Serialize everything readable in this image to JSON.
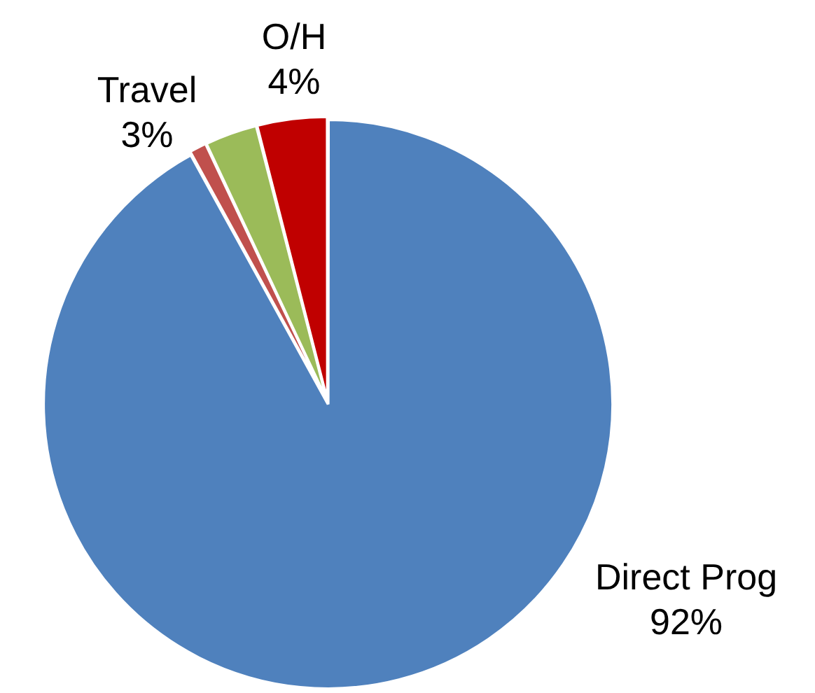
{
  "chart_data": {
    "type": "pie",
    "categories": [
      "Direct Prog",
      null,
      "Travel",
      "O/H"
    ],
    "values": [
      92,
      1,
      3,
      4
    ],
    "colors": [
      "#4f81bd",
      "#c0504d",
      "#9bbb59",
      "#c00000"
    ],
    "value_labels": [
      "92%",
      null,
      "3%",
      "4%"
    ],
    "legend": false
  }
}
